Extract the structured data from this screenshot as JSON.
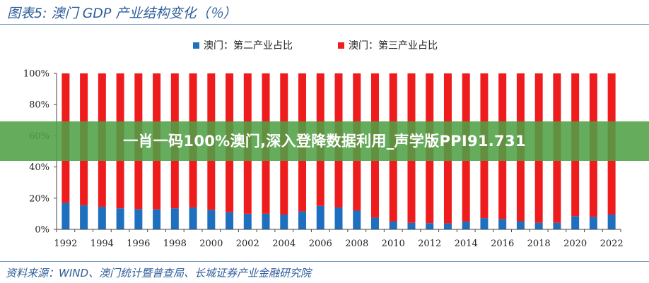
{
  "figure_title": "图表5:  澳门 GDP 产业结构变化（％）",
  "source_text": "资料来源：WIND、澳门统计暨普查局、长城证券产业金融研究院",
  "banner_text": "一肖一码100%澳门,深入登降数据利用_声学版PPI91.731",
  "colors": {
    "secondary": "#1f6fbf",
    "tertiary": "#ee1c1c",
    "axis": "#444444"
  },
  "chart_data": {
    "type": "bar",
    "stacked": true,
    "percent_stacked": true,
    "categories": [
      "1992",
      "1993",
      "1994",
      "1995",
      "1996",
      "1997",
      "1998",
      "1999",
      "2000",
      "2001",
      "2002",
      "2003",
      "2004",
      "2005",
      "2006",
      "2007",
      "2008",
      "2009",
      "2010",
      "2011",
      "2012",
      "2013",
      "2014",
      "2015",
      "2016",
      "2017",
      "2018",
      "2019",
      "2020",
      "2021",
      "2022"
    ],
    "x_tick_labels": [
      "1992",
      "1994",
      "1996",
      "1998",
      "2000",
      "2002",
      "2004",
      "2006",
      "2008",
      "2010",
      "2012",
      "2014",
      "2016",
      "2018",
      "2020",
      "2022"
    ],
    "series": [
      {
        "name": "澳门：第二产业占比",
        "color": "#1f6fbf",
        "values": [
          17,
          15.5,
          14.5,
          13.5,
          13,
          12.8,
          13.5,
          14,
          12.5,
          11,
          10,
          10,
          9.5,
          11.5,
          15,
          14,
          12,
          7.5,
          5,
          4.2,
          4,
          3.8,
          5,
          7.2,
          6.5,
          5.2,
          4.2,
          4.2,
          8.5,
          8,
          9.5
        ]
      },
      {
        "name": "澳门：第三产业占比",
        "color": "#ee1c1c",
        "values": [
          83,
          84.5,
          85.5,
          86.5,
          87,
          87.2,
          86.5,
          86,
          87.5,
          89,
          90,
          90,
          90.5,
          88.5,
          85,
          86,
          88,
          92.5,
          95,
          95.8,
          96,
          96.2,
          95,
          92.8,
          93.5,
          94.8,
          95.8,
          95.8,
          91.5,
          92,
          90.5
        ]
      }
    ],
    "y_tick_labels": [
      "0%",
      "20%",
      "40%",
      "60%",
      "80%",
      "100%"
    ],
    "ylim": [
      0,
      100
    ],
    "title": "澳门 GDP 产业结构变化（％）",
    "xlabel": "",
    "ylabel": "",
    "legend_position": "top-center",
    "grid": false
  }
}
